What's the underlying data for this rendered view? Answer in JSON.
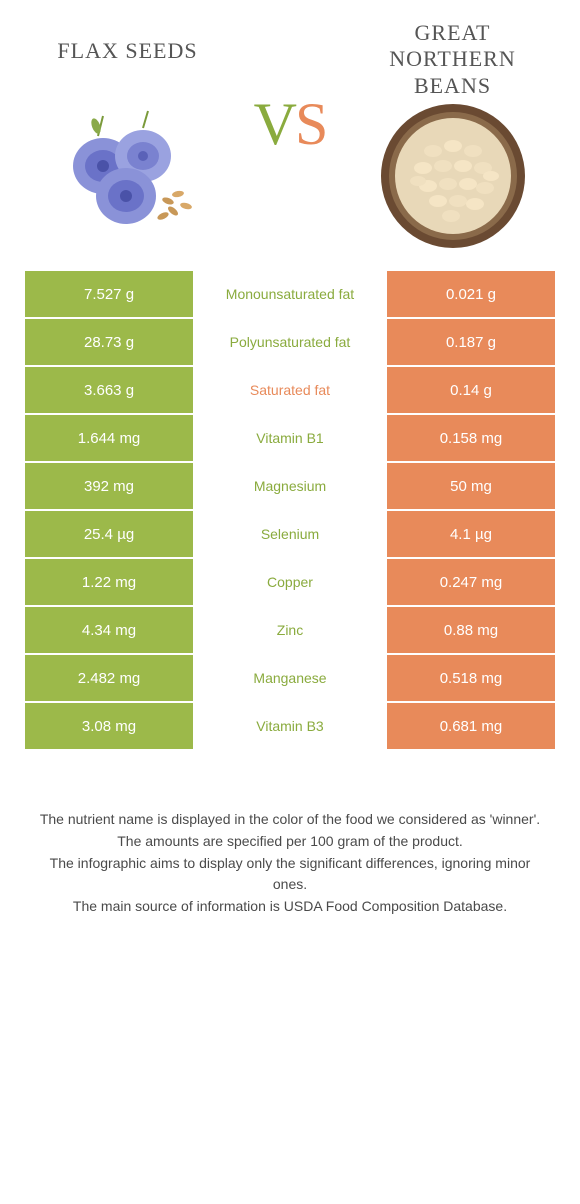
{
  "colors": {
    "left_bg": "#9cb94a",
    "right_bg": "#e88a5a",
    "left_text": "#8aab3e",
    "right_text": "#e88a5a",
    "white": "#ffffff",
    "body_text": "#4a4a4a",
    "title_text": "#555555"
  },
  "header": {
    "left_title": "flax seeds",
    "right_title_line1": "Great",
    "right_title_line2": "northern",
    "right_title_line3": "beans",
    "vs_v": "V",
    "vs_s": "S"
  },
  "rows": [
    {
      "left": "7.527 g",
      "label": "Monounsaturated fat",
      "right": "0.021 g",
      "winner": "left"
    },
    {
      "left": "28.73 g",
      "label": "Polyunsaturated fat",
      "right": "0.187 g",
      "winner": "left"
    },
    {
      "left": "3.663 g",
      "label": "Saturated fat",
      "right": "0.14 g",
      "winner": "right"
    },
    {
      "left": "1.644 mg",
      "label": "Vitamin B1",
      "right": "0.158 mg",
      "winner": "left"
    },
    {
      "left": "392 mg",
      "label": "Magnesium",
      "right": "50 mg",
      "winner": "left"
    },
    {
      "left": "25.4 µg",
      "label": "Selenium",
      "right": "4.1 µg",
      "winner": "left"
    },
    {
      "left": "1.22 mg",
      "label": "Copper",
      "right": "0.247 mg",
      "winner": "left"
    },
    {
      "left": "4.34 mg",
      "label": "Zinc",
      "right": "0.88 mg",
      "winner": "left"
    },
    {
      "left": "2.482 mg",
      "label": "Manganese",
      "right": "0.518 mg",
      "winner": "left"
    },
    {
      "left": "3.08 mg",
      "label": "Vitamin B3",
      "right": "0.681 mg",
      "winner": "left"
    }
  ],
  "footer": {
    "line1": "The nutrient name is displayed in the color of the food we considered as 'winner'.",
    "line2": "The amounts are specified per 100 gram of the product.",
    "line3": "The infographic aims to display only the significant differences, ignoring minor ones.",
    "line4": "The main source of information is USDA Food Composition Database."
  }
}
